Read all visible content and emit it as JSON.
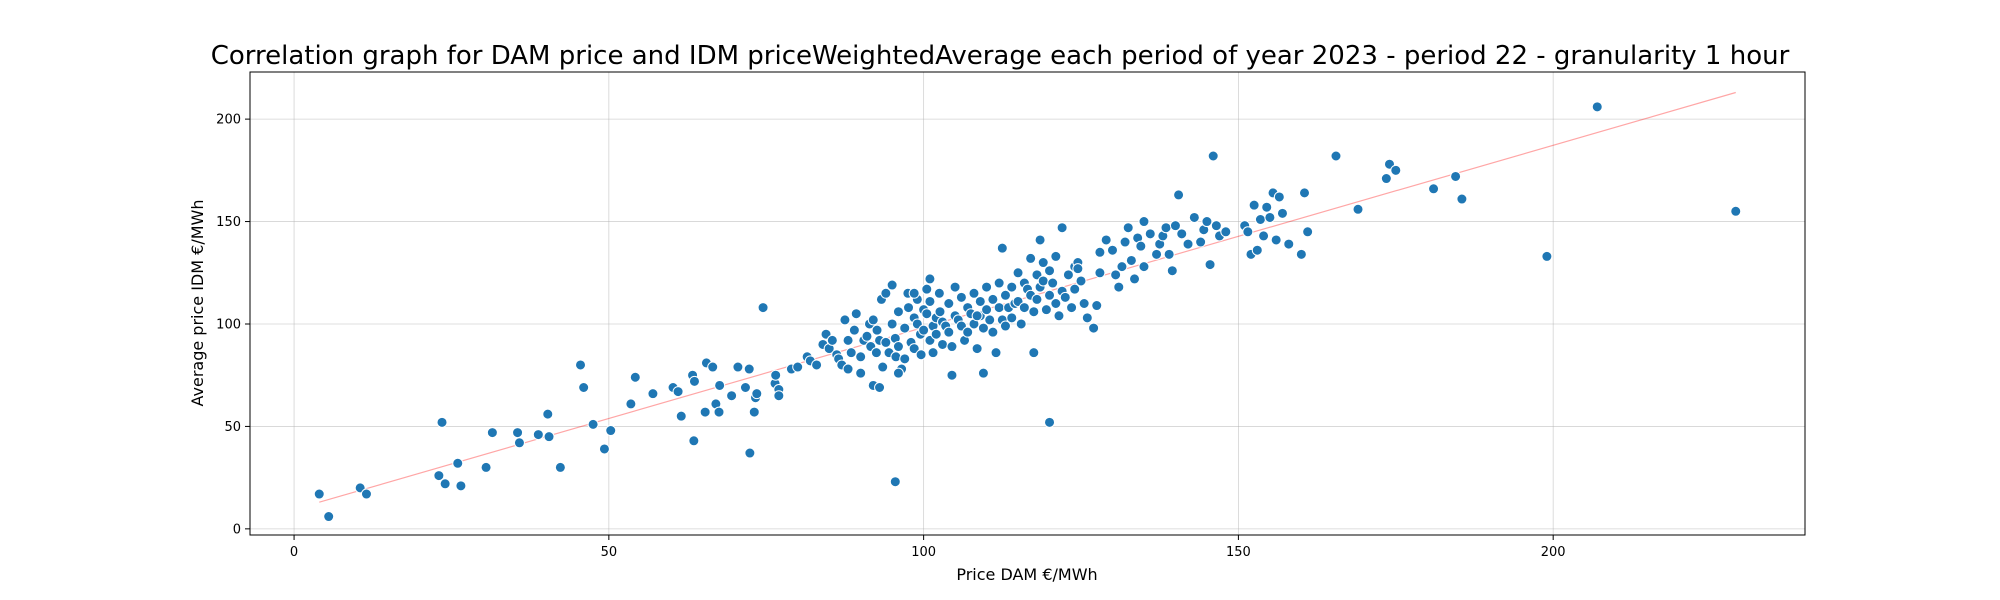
{
  "chart_data": {
    "type": "scatter",
    "title": "Correlation graph for DAM price and IDM priceWeightedAverage each period of year 2023 - period 22 - granularity 1 hour",
    "xlabel": "Price DAM €/MWh",
    "ylabel": "Average price IDM €/MWh",
    "xlim": [
      -7,
      240
    ],
    "ylim": [
      -3,
      223
    ],
    "xticks": [
      0,
      50,
      100,
      150,
      200
    ],
    "yticks": [
      0,
      50,
      100,
      150,
      200
    ],
    "grid": true,
    "point_color": "#1f77b4",
    "fit_line_color": "#ff0000",
    "fit_line": {
      "x": [
        4,
        229
      ],
      "y": [
        13,
        213
      ]
    },
    "points": [
      [
        4,
        17
      ],
      [
        5.5,
        6
      ],
      [
        10.5,
        20
      ],
      [
        11.5,
        17
      ],
      [
        23,
        26
      ],
      [
        23.5,
        52
      ],
      [
        24,
        22
      ],
      [
        26,
        32
      ],
      [
        26.5,
        21
      ],
      [
        30.5,
        30
      ],
      [
        31.5,
        47
      ],
      [
        35.5,
        47
      ],
      [
        35.8,
        42
      ],
      [
        38.8,
        46
      ],
      [
        40.3,
        56
      ],
      [
        40.5,
        45
      ],
      [
        42.3,
        30
      ],
      [
        45.5,
        80
      ],
      [
        46,
        69
      ],
      [
        47.5,
        51
      ],
      [
        49.3,
        39
      ],
      [
        50.3,
        48
      ],
      [
        53.5,
        61
      ],
      [
        54.2,
        74
      ],
      [
        57,
        66
      ],
      [
        60.2,
        69
      ],
      [
        61,
        67
      ],
      [
        61.5,
        55
      ],
      [
        63.3,
        75
      ],
      [
        63.5,
        43
      ],
      [
        63.6,
        72
      ],
      [
        65.3,
        57
      ],
      [
        65.5,
        81
      ],
      [
        66.5,
        79
      ],
      [
        67,
        61
      ],
      [
        67.5,
        57
      ],
      [
        67.6,
        70
      ],
      [
        69.5,
        65
      ],
      [
        70.5,
        79
      ],
      [
        71.7,
        69
      ],
      [
        72.3,
        78
      ],
      [
        72.4,
        37
      ],
      [
        73.1,
        57
      ],
      [
        73.3,
        64
      ],
      [
        73.5,
        66
      ],
      [
        74.5,
        108
      ],
      [
        76.4,
        71
      ],
      [
        76.5,
        75
      ],
      [
        77,
        68
      ],
      [
        77,
        65
      ],
      [
        79,
        78
      ],
      [
        80,
        79
      ],
      [
        81.5,
        84
      ],
      [
        82,
        82
      ],
      [
        83,
        80
      ],
      [
        84,
        90
      ],
      [
        84.5,
        95
      ],
      [
        85,
        88
      ],
      [
        85.5,
        92
      ],
      [
        86.2,
        85
      ],
      [
        86.5,
        83
      ],
      [
        87,
        80
      ],
      [
        87.5,
        102
      ],
      [
        88,
        92
      ],
      [
        88,
        78
      ],
      [
        88.5,
        86
      ],
      [
        89,
        97
      ],
      [
        89.3,
        105
      ],
      [
        90,
        84
      ],
      [
        90,
        76
      ],
      [
        90.5,
        92
      ],
      [
        91,
        94
      ],
      [
        91.4,
        100
      ],
      [
        91.6,
        89
      ],
      [
        92,
        70
      ],
      [
        92,
        102
      ],
      [
        92.5,
        86
      ],
      [
        92.6,
        97
      ],
      [
        93,
        69
      ],
      [
        93,
        92
      ],
      [
        93.3,
        112
      ],
      [
        93.5,
        79
      ],
      [
        94,
        91
      ],
      [
        94,
        115
      ],
      [
        94.5,
        86
      ],
      [
        95,
        100
      ],
      [
        95,
        119
      ],
      [
        95.5,
        93
      ],
      [
        95.6,
        84
      ],
      [
        96,
        89
      ],
      [
        96,
        106
      ],
      [
        96.5,
        78
      ],
      [
        97,
        83
      ],
      [
        97,
        98
      ],
      [
        97.5,
        115
      ],
      [
        97.6,
        108
      ],
      [
        98,
        91
      ],
      [
        98.5,
        103
      ],
      [
        98.5,
        88
      ],
      [
        99,
        100
      ],
      [
        99,
        112
      ],
      [
        99.5,
        95
      ],
      [
        99.6,
        85
      ],
      [
        100,
        107
      ],
      [
        100,
        97
      ],
      [
        100.5,
        117
      ],
      [
        100.5,
        105
      ],
      [
        101,
        92
      ],
      [
        101,
        122
      ],
      [
        101,
        111
      ],
      [
        101.5,
        99
      ],
      [
        101.5,
        86
      ],
      [
        102,
        103
      ],
      [
        102,
        95
      ],
      [
        102.5,
        115
      ],
      [
        102.6,
        106
      ],
      [
        103,
        90
      ],
      [
        103,
        101
      ],
      [
        103.5,
        99
      ],
      [
        104,
        110
      ],
      [
        104,
        96
      ],
      [
        104.5,
        89
      ],
      [
        105,
        104
      ],
      [
        105,
        118
      ],
      [
        105.5,
        102
      ],
      [
        106,
        113
      ],
      [
        106,
        99
      ],
      [
        106.5,
        92
      ],
      [
        107,
        108
      ],
      [
        107,
        96
      ],
      [
        107.5,
        105
      ],
      [
        108,
        115
      ],
      [
        108,
        100
      ],
      [
        108.5,
        88
      ],
      [
        109,
        111
      ],
      [
        109,
        104
      ],
      [
        109.5,
        98
      ],
      [
        110,
        107
      ],
      [
        110,
        118
      ],
      [
        110.5,
        102
      ],
      [
        111,
        112
      ],
      [
        111,
        96
      ],
      [
        111.5,
        86
      ],
      [
        112,
        108
      ],
      [
        112,
        120
      ],
      [
        112.5,
        102
      ],
      [
        113,
        114
      ],
      [
        113,
        99
      ],
      [
        113.5,
        108
      ],
      [
        114,
        118
      ],
      [
        114,
        103
      ],
      [
        114.5,
        110
      ],
      [
        115,
        125
      ],
      [
        115,
        111
      ],
      [
        115.5,
        100
      ],
      [
        116,
        120
      ],
      [
        116,
        108
      ],
      [
        116.5,
        117
      ],
      [
        117,
        132
      ],
      [
        117,
        114
      ],
      [
        117.5,
        106
      ],
      [
        118,
        124
      ],
      [
        118,
        112
      ],
      [
        118.5,
        118
      ],
      [
        119,
        130
      ],
      [
        119,
        121
      ],
      [
        119.5,
        107
      ],
      [
        120,
        126
      ],
      [
        120,
        114
      ],
      [
        120.5,
        120
      ],
      [
        121,
        133
      ],
      [
        121,
        110
      ],
      [
        121.5,
        104
      ],
      [
        122,
        147
      ],
      [
        122,
        116
      ],
      [
        122.5,
        113
      ],
      [
        123,
        124
      ],
      [
        123.5,
        108
      ],
      [
        124,
        128
      ],
      [
        124,
        117
      ],
      [
        124.5,
        130
      ],
      [
        125,
        121
      ],
      [
        125.5,
        110
      ],
      [
        126,
        103
      ],
      [
        127,
        98
      ],
      [
        127.5,
        109
      ],
      [
        128,
        135
      ],
      [
        128,
        125
      ],
      [
        129,
        141
      ],
      [
        130,
        136
      ],
      [
        130.5,
        124
      ],
      [
        131,
        118
      ],
      [
        131.5,
        128
      ],
      [
        132,
        140
      ],
      [
        132.5,
        147
      ],
      [
        133,
        131
      ],
      [
        133.5,
        122
      ],
      [
        134,
        142
      ],
      [
        134.5,
        138
      ],
      [
        135,
        150
      ],
      [
        135,
        128
      ],
      [
        136,
        144
      ],
      [
        137,
        134
      ],
      [
        137.5,
        139
      ],
      [
        138,
        143
      ],
      [
        138.5,
        147
      ],
      [
        139,
        134
      ],
      [
        139.5,
        126
      ],
      [
        140,
        148
      ],
      [
        140.5,
        163
      ],
      [
        141,
        144
      ],
      [
        142,
        139
      ],
      [
        143,
        152
      ],
      [
        144,
        140
      ],
      [
        144.5,
        146
      ],
      [
        145,
        150
      ],
      [
        145.5,
        129
      ],
      [
        146,
        182
      ],
      [
        146.5,
        148
      ],
      [
        147,
        143
      ],
      [
        148,
        145
      ],
      [
        151,
        148
      ],
      [
        151.5,
        145
      ],
      [
        152,
        134
      ],
      [
        152.5,
        158
      ],
      [
        153,
        136
      ],
      [
        153.5,
        151
      ],
      [
        154,
        143
      ],
      [
        154.5,
        157
      ],
      [
        155,
        152
      ],
      [
        155.5,
        164
      ],
      [
        156,
        141
      ],
      [
        156.5,
        162
      ],
      [
        157,
        154
      ],
      [
        158,
        139
      ],
      [
        160,
        134
      ],
      [
        160.5,
        164
      ],
      [
        161,
        145
      ],
      [
        165.5,
        182
      ],
      [
        169,
        156
      ],
      [
        173.5,
        171
      ],
      [
        174,
        178
      ],
      [
        175,
        175
      ],
      [
        181,
        166
      ],
      [
        184.5,
        172
      ],
      [
        185.5,
        161
      ],
      [
        199,
        133
      ],
      [
        207,
        206
      ],
      [
        229,
        155
      ],
      [
        95.5,
        23
      ],
      [
        120,
        52
      ],
      [
        96,
        76
      ],
      [
        104.5,
        75
      ],
      [
        109.5,
        76
      ],
      [
        117.5,
        86
      ],
      [
        98.5,
        115
      ],
      [
        108.5,
        104
      ],
      [
        112.5,
        137
      ],
      [
        118.5,
        141
      ],
      [
        124.5,
        127
      ]
    ]
  }
}
